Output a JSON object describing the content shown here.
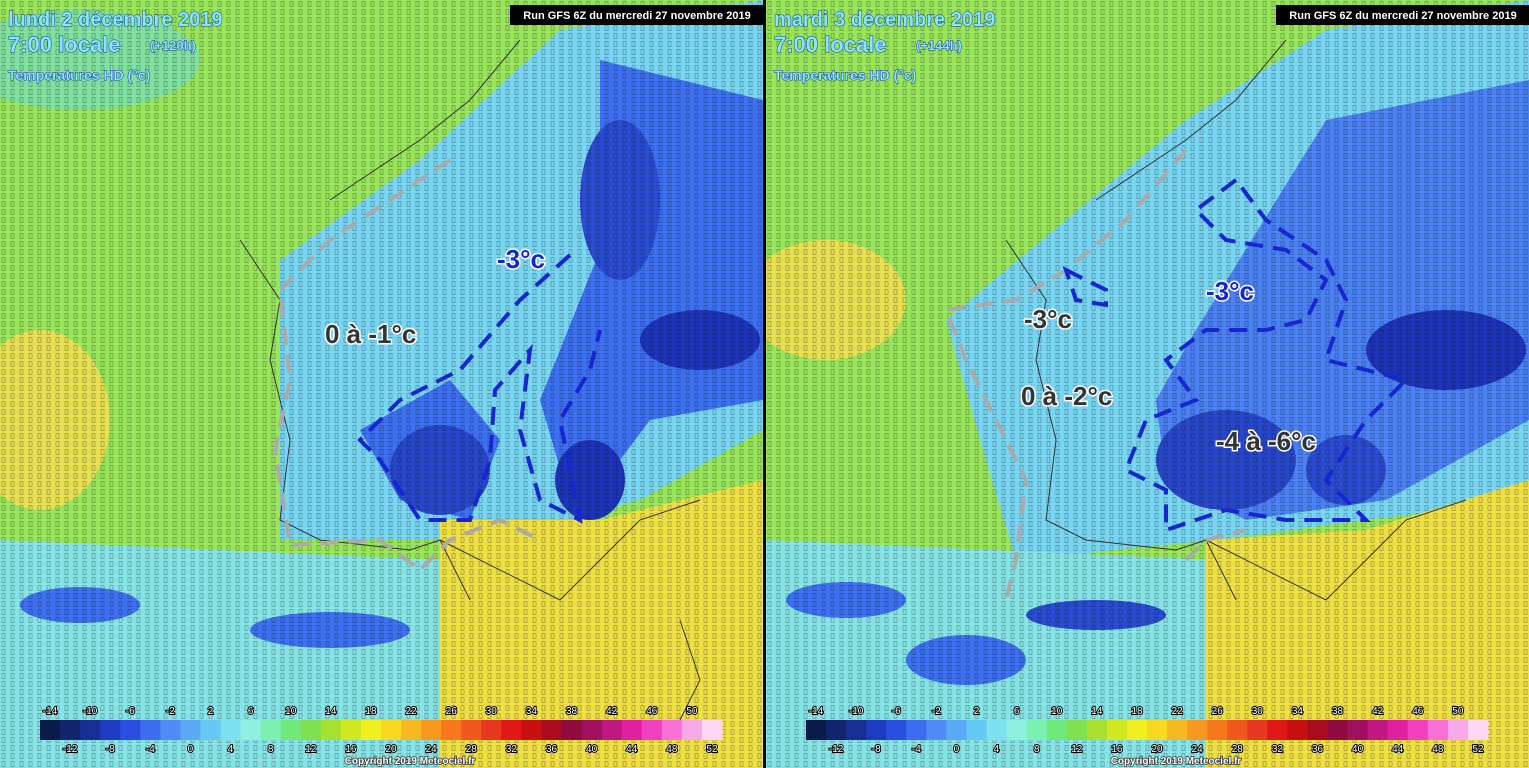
{
  "panels": [
    {
      "date": "lundi 2 décembre 2019",
      "time": "7:00 locale",
      "lead": "(+120h)",
      "field": "Temperatures HD (°c)",
      "run": "Run GFS 6Z du mercredi 27 novembre 2019",
      "annotations": [
        "0 à -1°c",
        "-3°c"
      ],
      "copyright": "Copyright 2019 Meteociel.fr"
    },
    {
      "date": "mardi 3 décembre 2019",
      "time": "7:00 locale",
      "lead": "(+144h)",
      "field": "Temperatures HD (°c)",
      "run": "Run GFS 6Z du mercredi 27 novembre 2019",
      "annotations": [
        "-3°c",
        "-3°c",
        "0 à -2°c",
        "-4 à -6°c"
      ],
      "copyright": "Copyright 2019 Meteociel.fr"
    }
  ],
  "colorbar": {
    "labels": [
      -14,
      -12,
      -10,
      -8,
      -6,
      -4,
      -2,
      0,
      2,
      4,
      6,
      8,
      10,
      12,
      14,
      16,
      18,
      20,
      22,
      24,
      26,
      28,
      30,
      32,
      34,
      36,
      38,
      40,
      42,
      44,
      46,
      48,
      50,
      52
    ],
    "colors": [
      "#0a1a4a",
      "#13246e",
      "#1a2f96",
      "#1f3cc0",
      "#2a4fe0",
      "#3d6cf0",
      "#4f8cf5",
      "#5aaaf5",
      "#66c8f5",
      "#7ee0f0",
      "#8ff0e0",
      "#7cf0b0",
      "#70e87a",
      "#80e050",
      "#a8e030",
      "#d0e820",
      "#f0f020",
      "#f8d820",
      "#f8b820",
      "#f89820",
      "#f87820",
      "#f05820",
      "#e83820",
      "#e01818",
      "#c81010",
      "#a80c20",
      "#900c40",
      "#a01060",
      "#c01880",
      "#e020a0",
      "#f040c0",
      "#f870d8",
      "#f8a8e8",
      "#fcd8f4"
    ]
  }
}
